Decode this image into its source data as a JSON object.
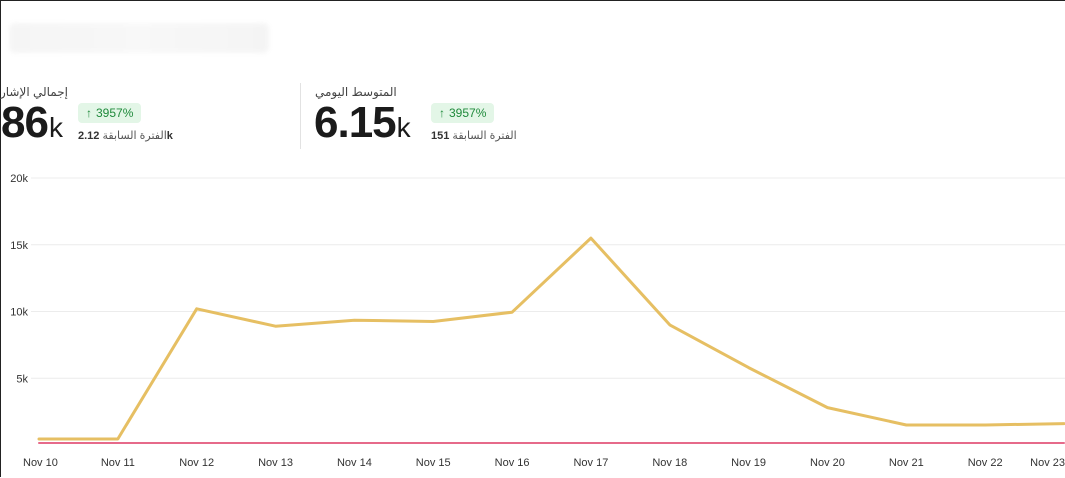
{
  "stats": {
    "total_mentions": {
      "label": "إجمالي الإشارات",
      "value": "86",
      "unit": "k",
      "change": "3957%",
      "prev_label": "الفترة السابقة",
      "prev_value": "2.12",
      "prev_unit": "k"
    },
    "daily_average": {
      "label": "المتوسط اليومي",
      "value": "6.15",
      "unit": "k",
      "change": "3957%",
      "prev_label": "الفترة السابقة",
      "prev_value": "151",
      "prev_unit": ""
    }
  },
  "colors": {
    "current_series": "#e6bf63",
    "previous_series": "#e66a8a",
    "grid": "#ececec",
    "badge_bg": "#e3f6e7",
    "badge_text": "#1f8a3b"
  },
  "chart_data": {
    "type": "line",
    "x": [
      "Nov 10",
      "Nov 11",
      "Nov 12",
      "Nov 13",
      "Nov 14",
      "Nov 15",
      "Nov 16",
      "Nov 17",
      "Nov 18",
      "Nov 19",
      "Nov 20",
      "Nov 21",
      "Nov 22",
      "Nov 23"
    ],
    "series": [
      {
        "values": [
          450,
          450,
          10200,
          8900,
          9350,
          9250,
          9950,
          15500,
          9000,
          5800,
          2800,
          1500,
          1500,
          1600
        ],
        "color": "#e6bf63"
      },
      {
        "values": [
          150,
          150,
          150,
          150,
          150,
          150,
          150,
          150,
          150,
          150,
          150,
          150,
          150,
          150
        ],
        "color": "#e66a8a"
      }
    ],
    "yticks": [
      "20k",
      "15k",
      "10k",
      "5k"
    ],
    "ytick_values": [
      20000,
      15000,
      10000,
      5000
    ],
    "ylim": [
      0,
      20000
    ],
    "grid": true
  }
}
